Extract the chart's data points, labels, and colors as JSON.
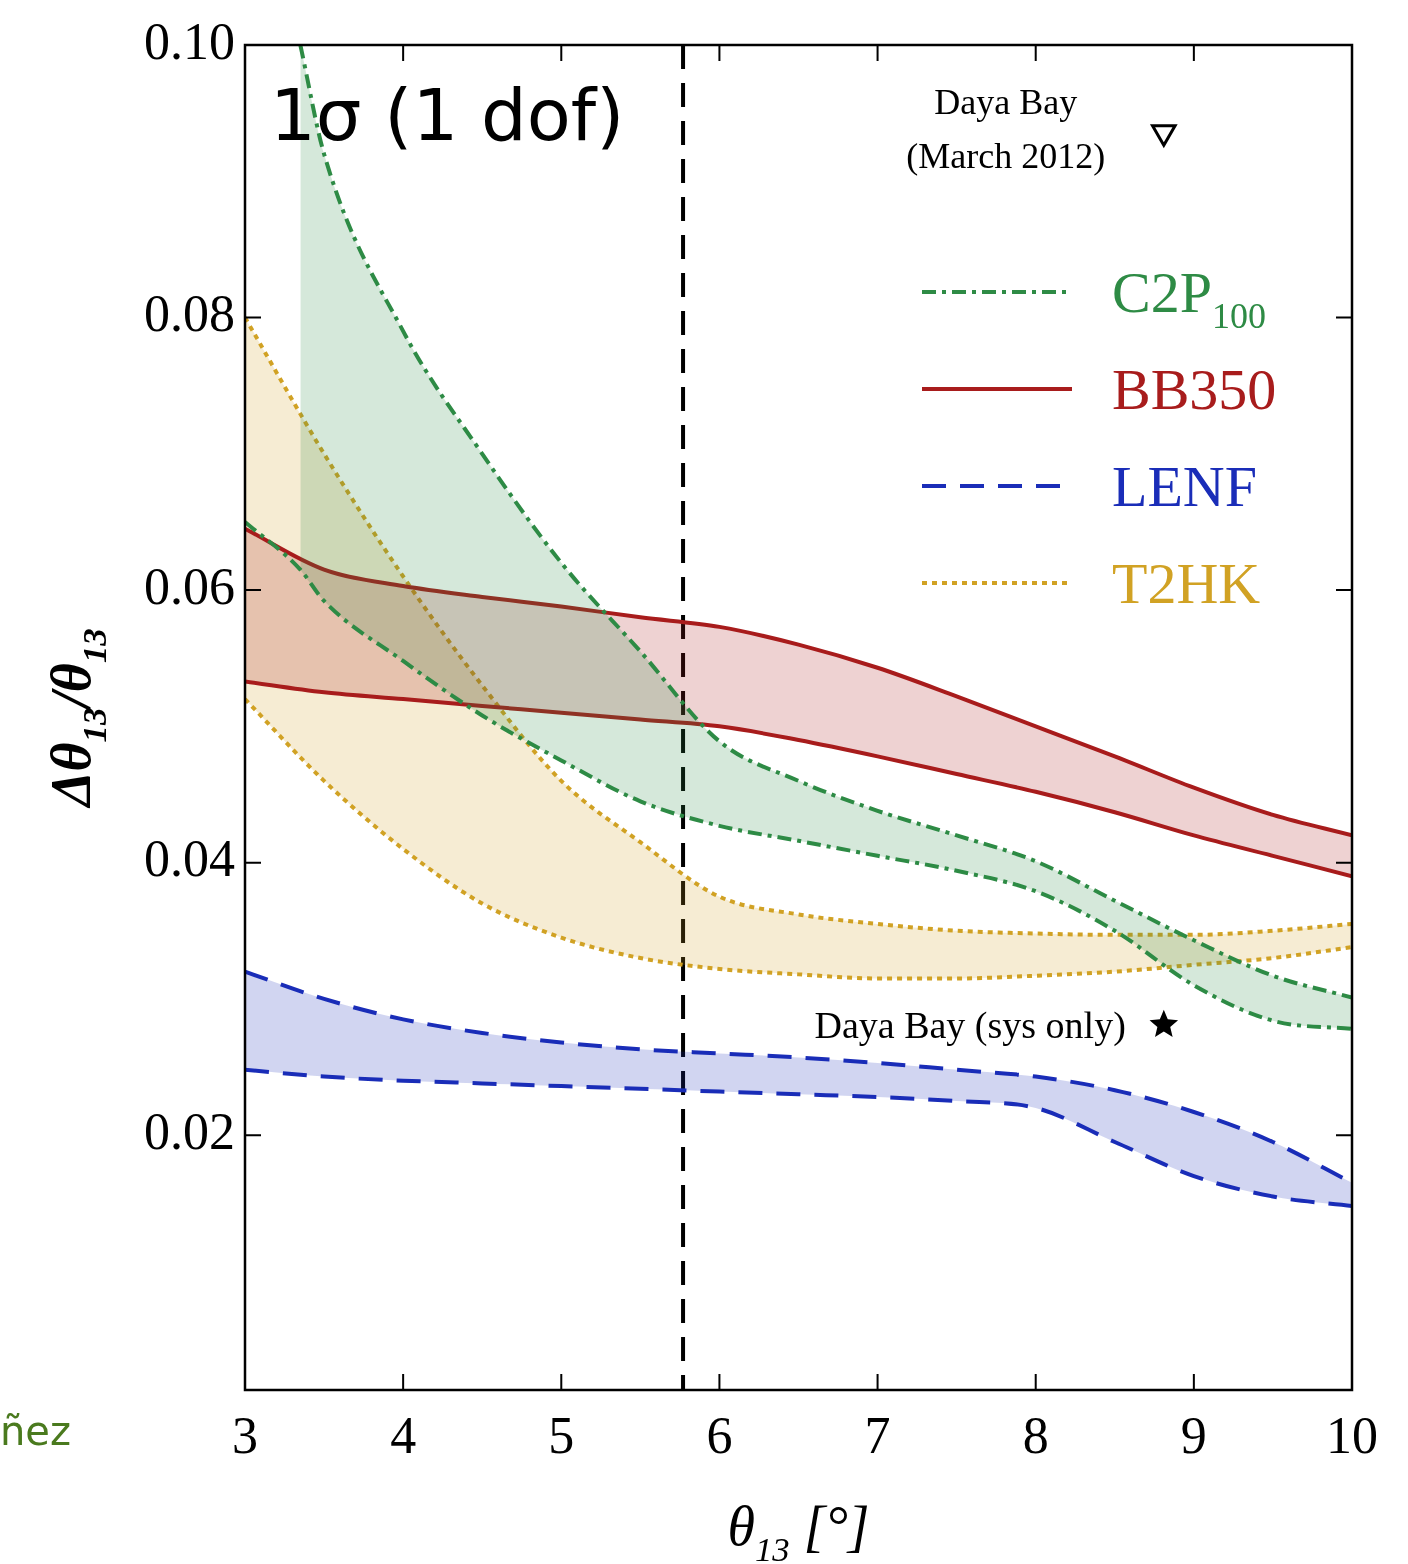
{
  "chart_data": {
    "type": "line",
    "xlabel": "θ$_{13}$ [°]",
    "ylabel": "Δθ$_{13}$/θ$_{13}$",
    "x": [
      3,
      3.5,
      4,
      4.5,
      5,
      5.5,
      6,
      6.5,
      7,
      7.5,
      8,
      8.5,
      9,
      9.5,
      10
    ],
    "xlim": [
      3,
      10
    ],
    "xticks": [
      3,
      4,
      5,
      6,
      7,
      8,
      9,
      10
    ],
    "ylim": [
      0.0013,
      0.1
    ],
    "yticks": [
      {
        "value": 0.02,
        "label": "0.02"
      },
      {
        "value": 0.04,
        "label": "0.04"
      },
      {
        "value": 0.06,
        "label": "0.06"
      },
      {
        "value": 0.08,
        "label": "0.08"
      },
      {
        "value": 0.1,
        "label": "0.10"
      }
    ],
    "grid": false,
    "legend": "top right",
    "series": [
      {
        "name": "C2P$_{100}$",
        "color": "#2e8b45",
        "line_style": "dashdot",
        "x": [
          3.35,
          3.5,
          4,
          4.5,
          5,
          5.5,
          6,
          6.5,
          7,
          7.5,
          8,
          8.5,
          9,
          9.5,
          10
        ],
        "values": [
          0.1,
          0.092,
          0.079,
          0.07,
          0.062,
          0.0555,
          0.0489,
          0.046,
          0.0438,
          0.042,
          0.0401,
          0.0372,
          0.0343,
          0.0317,
          0.0301
        ],
        "lower": [
          0.0615,
          0.0592,
          0.0548,
          0.0508,
          0.0475,
          0.0445,
          0.0427,
          0.0416,
          0.0405,
          0.0394,
          0.0379,
          0.035,
          0.031,
          0.0284,
          0.0278
        ],
        "upper": [
          0.1,
          0.092,
          0.079,
          0.07,
          0.062,
          0.0555,
          0.0489,
          0.046,
          0.0438,
          0.042,
          0.0401,
          0.0372,
          0.0343,
          0.0317,
          0.0301
        ]
      },
      {
        "color": "#2e8b45",
        "line_style": "dashdot",
        "x": [
          3,
          3.35,
          3.5,
          4,
          4.5,
          5,
          5.5,
          6,
          6.5,
          7,
          7.5,
          8,
          8.5,
          9,
          9.5,
          10
        ],
        "values": [
          0.065,
          0.0615,
          0.0592,
          0.0548,
          0.0508,
          0.0475,
          0.0445,
          0.0427,
          0.0416,
          0.0405,
          0.0394,
          0.0379,
          0.035,
          0.031,
          0.0284,
          0.0278
        ]
      },
      {
        "name": "BB350",
        "color": "#a81c1c",
        "line_style": "solid",
        "values": [
          0.0645,
          0.0615,
          0.0603,
          0.0595,
          0.0588,
          0.058,
          0.0573,
          0.056,
          0.0543,
          0.0522,
          0.05,
          0.0478,
          0.0455,
          0.0435,
          0.042
        ],
        "lower": [
          0.0533,
          0.0525,
          0.052,
          0.0515,
          0.051,
          0.0505,
          0.05,
          0.049,
          0.0478,
          0.0465,
          0.0452,
          0.0437,
          0.042,
          0.0405,
          0.039
        ],
        "upper": [
          0.0645,
          0.0615,
          0.0603,
          0.0595,
          0.0588,
          0.058,
          0.0573,
          0.056,
          0.0543,
          0.0522,
          0.05,
          0.0478,
          0.0455,
          0.0435,
          0.042
        ]
      },
      {
        "color": "#a81c1c",
        "line_style": "solid",
        "values": [
          0.0533,
          0.0525,
          0.052,
          0.0515,
          0.051,
          0.0505,
          0.05,
          0.049,
          0.0478,
          0.0465,
          0.0452,
          0.0437,
          0.042,
          0.0405,
          0.039
        ]
      },
      {
        "name": "LENF",
        "color": "#1a2db8",
        "line_style": "dashed",
        "values": [
          0.032,
          0.03,
          0.0285,
          0.0275,
          0.0268,
          0.0263,
          0.026,
          0.0257,
          0.0253,
          0.0248,
          0.0243,
          0.0233,
          0.0217,
          0.0195,
          0.0165
        ],
        "lower": [
          0.0248,
          0.0243,
          0.024,
          0.0238,
          0.0236,
          0.0234,
          0.0232,
          0.023,
          0.0228,
          0.0225,
          0.022,
          0.0195,
          0.017,
          0.0155,
          0.0148
        ],
        "upper": [
          0.032,
          0.03,
          0.0285,
          0.0275,
          0.0268,
          0.0263,
          0.026,
          0.0257,
          0.0253,
          0.0248,
          0.0243,
          0.0233,
          0.0217,
          0.0195,
          0.0165
        ]
      },
      {
        "color": "#1a2db8",
        "line_style": "dashed",
        "values": [
          0.0248,
          0.0243,
          0.024,
          0.0238,
          0.0236,
          0.0234,
          0.0232,
          0.023,
          0.0228,
          0.0225,
          0.022,
          0.0195,
          0.017,
          0.0155,
          0.0148
        ]
      },
      {
        "name": "T2HK",
        "color": "#d1a224",
        "line_style": "dotted",
        "values": [
          0.08,
          0.07,
          0.061,
          0.053,
          0.046,
          0.0415,
          0.0375,
          0.0362,
          0.0355,
          0.035,
          0.0348,
          0.0347,
          0.0347,
          0.035,
          0.0355
        ],
        "lower": [
          0.052,
          0.046,
          0.041,
          0.037,
          0.0345,
          0.033,
          0.0322,
          0.0318,
          0.0315,
          0.0315,
          0.0317,
          0.032,
          0.0325,
          0.033,
          0.0338
        ],
        "upper": [
          0.08,
          0.07,
          0.061,
          0.053,
          0.046,
          0.0415,
          0.0375,
          0.0362,
          0.0355,
          0.035,
          0.0348,
          0.0347,
          0.0347,
          0.035,
          0.0355
        ]
      },
      {
        "color": "#d1a224",
        "line_style": "dotted",
        "values": [
          0.052,
          0.046,
          0.041,
          0.037,
          0.0345,
          0.033,
          0.0322,
          0.0318,
          0.0315,
          0.0315,
          0.0317,
          0.032,
          0.0325,
          0.033,
          0.0338
        ]
      },
      {
        "name": "Daya Bay (March 2012)",
        "type": "scatter",
        "marker": "triangle",
        "color": "#000000",
        "x": [
          8.81
        ],
        "values": [
          0.0936
        ]
      },
      {
        "name": "Daya Bay (sys only)",
        "type": "scatter",
        "marker": "star",
        "color": "#000000",
        "x": [
          8.81
        ],
        "values": [
          0.0281
        ]
      }
    ],
    "ref_lines": [
      {
        "axis": "x",
        "value": 5.77,
        "color": "#000000",
        "line_style": "dashed"
      }
    ],
    "annotations": [
      "1σ (1 dof)",
      "ñez"
    ]
  }
}
